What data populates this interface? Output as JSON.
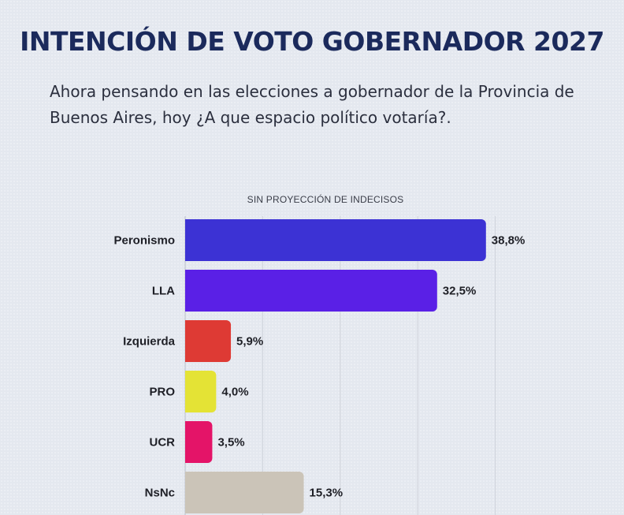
{
  "header": {
    "title": "INTENCIÓN DE VOTO GOBERNADOR 2027",
    "question": "Ahora pensando en las elecciones a gobernador de la Provincia de Buenos Aires, hoy ¿A que espacio político votaría?."
  },
  "chart_data": {
    "type": "bar",
    "orientation": "horizontal",
    "title": "SIN PROYECCIÓN DE INDECISOS",
    "categories": [
      "Peronismo",
      "LLA",
      "Izquierda",
      "PRO",
      "UCR",
      "NsNc"
    ],
    "values": [
      38.8,
      32.5,
      5.9,
      4.0,
      3.5,
      15.3
    ],
    "value_labels": [
      "38,8%",
      "32,5%",
      "5,9%",
      "4,0%",
      "3,5%",
      "15,3%"
    ],
    "colors": [
      "#3c32d4",
      "#5a20e6",
      "#de3a34",
      "#e4e335",
      "#e41468",
      "#cbc4b8"
    ],
    "xlim": [
      0,
      40
    ],
    "grid": true,
    "legend": "none"
  }
}
